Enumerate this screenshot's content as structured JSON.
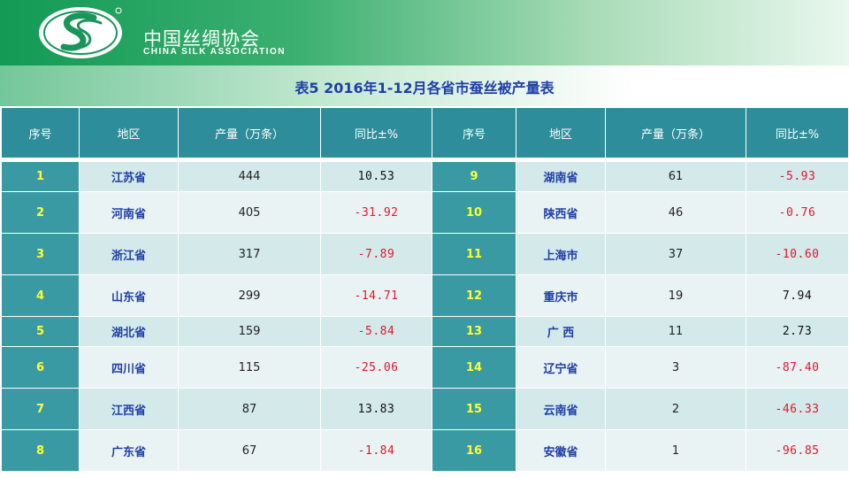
{
  "header": {
    "brand_cn": "中国丝绸协会",
    "brand_en": "CHINA SILK ASSOCIATION"
  },
  "table": {
    "title": "表5  2016年1-12月各省市蚕丝被产量表",
    "columns": [
      "序号",
      "地区",
      "产量（万条）",
      "同比±%",
      "序号",
      "地区",
      "产量（万条）",
      "同比±%"
    ],
    "rows": [
      {
        "left": {
          "no": "1",
          "region": "江苏省",
          "output": "444",
          "yoy": "10.53",
          "neg": false
        },
        "right": {
          "no": "9",
          "region": "湖南省",
          "output": "61",
          "yoy": "-5.93",
          "neg": true
        }
      },
      {
        "left": {
          "no": "2",
          "region": "河南省",
          "output": "405",
          "yoy": "-31.92",
          "neg": true
        },
        "right": {
          "no": "10",
          "region": "陕西省",
          "output": "46",
          "yoy": "-0.76",
          "neg": true
        }
      },
      {
        "left": {
          "no": "3",
          "region": "浙江省",
          "output": "317",
          "yoy": "-7.89",
          "neg": true
        },
        "right": {
          "no": "11",
          "region": "上海市",
          "output": "37",
          "yoy": "-10.60",
          "neg": true
        }
      },
      {
        "left": {
          "no": "4",
          "region": "山东省",
          "output": "299",
          "yoy": "-14.71",
          "neg": true
        },
        "right": {
          "no": "12",
          "region": "重庆市",
          "output": "19",
          "yoy": "7.94",
          "neg": false
        }
      },
      {
        "left": {
          "no": "5",
          "region": "湖北省",
          "output": "159",
          "yoy": "-5.84",
          "neg": true
        },
        "right": {
          "no": "13",
          "region": "广  西",
          "output": "11",
          "yoy": "2.73",
          "neg": false
        }
      },
      {
        "left": {
          "no": "6",
          "region": "四川省",
          "output": "115",
          "yoy": "-25.06",
          "neg": true
        },
        "right": {
          "no": "14",
          "region": "辽宁省",
          "output": "3",
          "yoy": "-87.40",
          "neg": true
        }
      },
      {
        "left": {
          "no": "7",
          "region": "江西省",
          "output": "87",
          "yoy": "13.83",
          "neg": false
        },
        "right": {
          "no": "15",
          "region": "云南省",
          "output": "2",
          "yoy": "-46.33",
          "neg": true
        }
      },
      {
        "left": {
          "no": "8",
          "region": "广东省",
          "output": "67",
          "yoy": "-1.84",
          "neg": true
        },
        "right": {
          "no": "16",
          "region": "安徽省",
          "output": "1",
          "yoy": "-96.85",
          "neg": true
        }
      }
    ]
  }
}
